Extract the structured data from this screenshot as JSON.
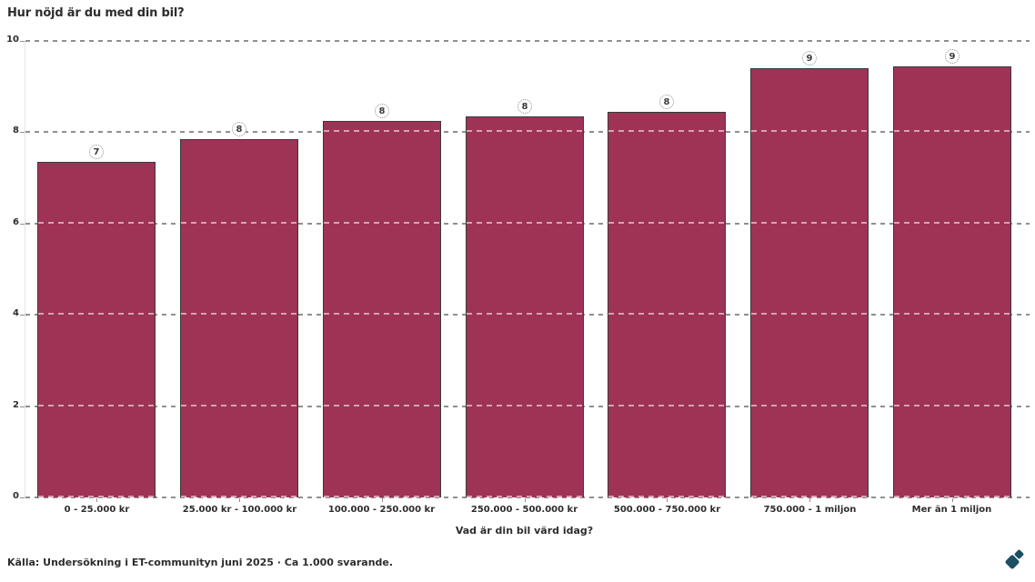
{
  "source": "Källa: Undersökning i ET-communityn juni 2025 · Ca 1.000 svarande.",
  "colors": {
    "bar": "#9e3355",
    "bar_border": "#3a3a3a",
    "grid": "#8f8f8f",
    "text": "#2d2d2d",
    "badge_text": "#3d3d3d",
    "logo": "#1d4f63",
    "background": "#ffffff"
  },
  "chart_data": {
    "type": "bar",
    "title": "Hur nöjd är du med din bil?",
    "xlabel": "Vad är din bil värd idag?",
    "ylabel": "",
    "categories": [
      "0 - 25.000 kr",
      "25.000 kr - 100.000 kr",
      "100.000 - 250.000 kr",
      "250.000 - 500.000 kr",
      "500.000 - 750.000 kr",
      "750.000 - 1 miljon",
      "Mer än 1 miljon"
    ],
    "values": [
      7.35,
      7.85,
      8.25,
      8.35,
      8.45,
      9.4,
      9.45
    ],
    "bar_labels": [
      "7",
      "8",
      "8",
      "8",
      "8",
      "9",
      "9"
    ],
    "ylim": [
      0,
      10
    ],
    "yticks": [
      0,
      2,
      4,
      6,
      8,
      10
    ],
    "grid": "horizontal-dashed",
    "legend": "none"
  }
}
